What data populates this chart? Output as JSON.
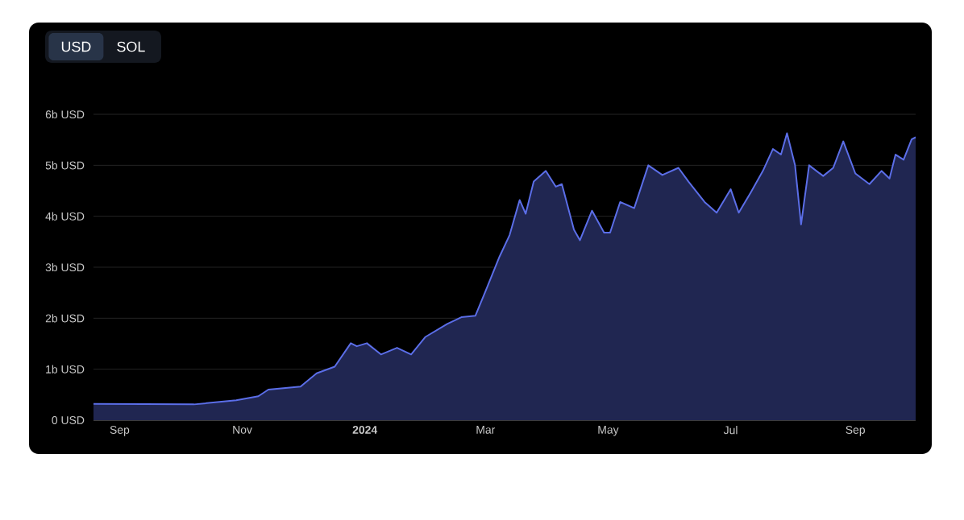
{
  "chart_data": {
    "type": "area",
    "x": [
      "2023-08-19",
      "2023-10-08",
      "2023-10-29",
      "2023-11-09",
      "2023-11-14",
      "2023-11-30",
      "2023-12-08",
      "2023-12-17",
      "2023-12-25",
      "2023-12-28",
      "2024-01-02",
      "2024-01-09",
      "2024-01-17",
      "2024-01-24",
      "2024-01-31",
      "2024-02-11",
      "2024-02-18",
      "2024-02-25",
      "2024-03-01",
      "2024-03-08",
      "2024-03-13",
      "2024-03-18",
      "2024-03-21",
      "2024-03-25",
      "2024-03-31",
      "2024-04-05",
      "2024-04-08",
      "2024-04-14",
      "2024-04-17",
      "2024-04-23",
      "2024-04-29",
      "2024-05-02",
      "2024-05-07",
      "2024-05-14",
      "2024-05-21",
      "2024-05-28",
      "2024-06-05",
      "2024-06-10",
      "2024-06-18",
      "2024-06-24",
      "2024-07-01",
      "2024-07-05",
      "2024-07-11",
      "2024-07-17",
      "2024-07-22",
      "2024-07-26",
      "2024-07-29",
      "2024-08-02",
      "2024-08-05",
      "2024-08-09",
      "2024-08-16",
      "2024-08-21",
      "2024-08-26",
      "2024-09-01",
      "2024-09-08",
      "2024-09-14",
      "2024-09-18",
      "2024-09-21",
      "2024-09-25",
      "2024-09-29",
      "2024-10-01"
    ],
    "series": [
      {
        "color": "#5b6ee8",
        "values": [
          0.32,
          0.31,
          0.39,
          0.47,
          0.6,
          0.66,
          0.92,
          1.05,
          1.51,
          1.45,
          1.51,
          1.29,
          1.42,
          1.29,
          1.63,
          1.89,
          2.02,
          2.05,
          2.53,
          3.21,
          3.63,
          4.32,
          4.05,
          4.68,
          4.89,
          4.58,
          4.63,
          3.74,
          3.53,
          4.11,
          3.68,
          3.68,
          4.28,
          4.16,
          5.0,
          4.81,
          4.95,
          4.68,
          4.28,
          4.07,
          4.53,
          4.07,
          4.47,
          4.89,
          5.32,
          5.21,
          5.63,
          5.0,
          3.84,
          5.0,
          4.79,
          4.95,
          5.47,
          4.84,
          4.63,
          4.89,
          4.74,
          5.21,
          5.11,
          5.51,
          5.55
        ]
      }
    ],
    "xlim": [
      "2023-08-19",
      "2024-10-01"
    ],
    "xticks": [
      {
        "value": "2023-09-01",
        "label": "Sep"
      },
      {
        "value": "2023-11-01",
        "label": "Nov"
      },
      {
        "value": "2024-01-01",
        "label": "**2024**"
      },
      {
        "value": "2024-03-01",
        "label": "Mar"
      },
      {
        "value": "2024-05-01",
        "label": "May"
      },
      {
        "value": "2024-07-01",
        "label": "Jul"
      },
      {
        "value": "2024-09-01",
        "label": "Sep"
      }
    ],
    "ylim": [
      0,
      6
    ],
    "yticks": [
      {
        "value": 0,
        "label": "0 USD"
      },
      {
        "value": 1,
        "label": "1b USD"
      },
      {
        "value": 2,
        "label": "2b USD"
      },
      {
        "value": 3,
        "label": "3b USD"
      },
      {
        "value": 4,
        "label": "4b USD"
      },
      {
        "value": 5,
        "label": "5b USD"
      },
      {
        "value": 6,
        "label": "6b USD"
      }
    ],
    "grid": "y",
    "annotations": [
      "USD",
      "SOL"
    ]
  }
}
